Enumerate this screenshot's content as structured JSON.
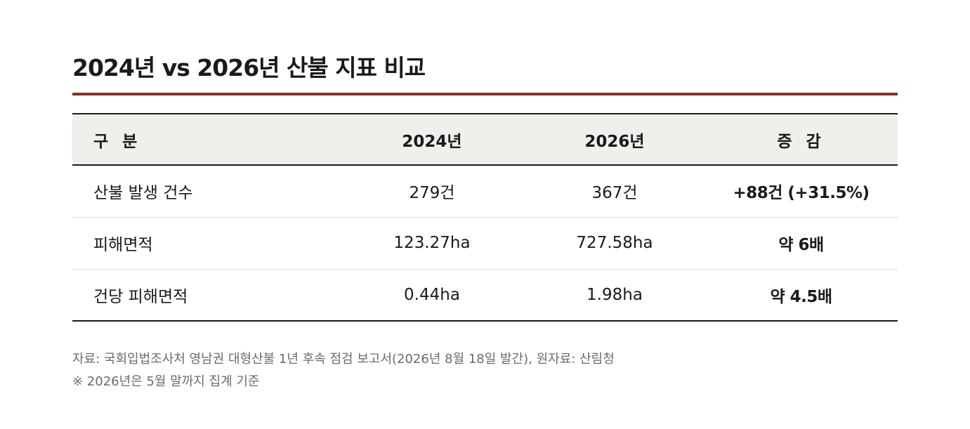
{
  "title": "2024년 vs 2026년 산불 지표 비교",
  "table": {
    "headers": [
      "구 분",
      "2024년",
      "2026년",
      "증 감"
    ],
    "rows": [
      {
        "label": "산불 발생 건수",
        "y2024": "279건",
        "y2026": "367건",
        "diff": "+88건 (+31.5%)"
      },
      {
        "label": "피해면적",
        "y2024": "123.27ha",
        "y2026": "727.58ha",
        "diff": "약 6배"
      },
      {
        "label": "건당 피해면적",
        "y2024": "0.44ha",
        "y2026": "1.98ha",
        "diff": "약 4.5배"
      }
    ]
  },
  "notes": {
    "source": "자료: 국회입법조사처 영남권 대형산불 1년 후속 점검 보고서(2026년 8월 18일 발간), 원자료: 산림청",
    "footnote": "※ 2026년은 5월 말까지 집계 기준"
  },
  "colors": {
    "accent": "#8b2e26",
    "header_bg": "#f1efec",
    "text": "#1a1a1a",
    "muted": "#6b6b6b"
  }
}
